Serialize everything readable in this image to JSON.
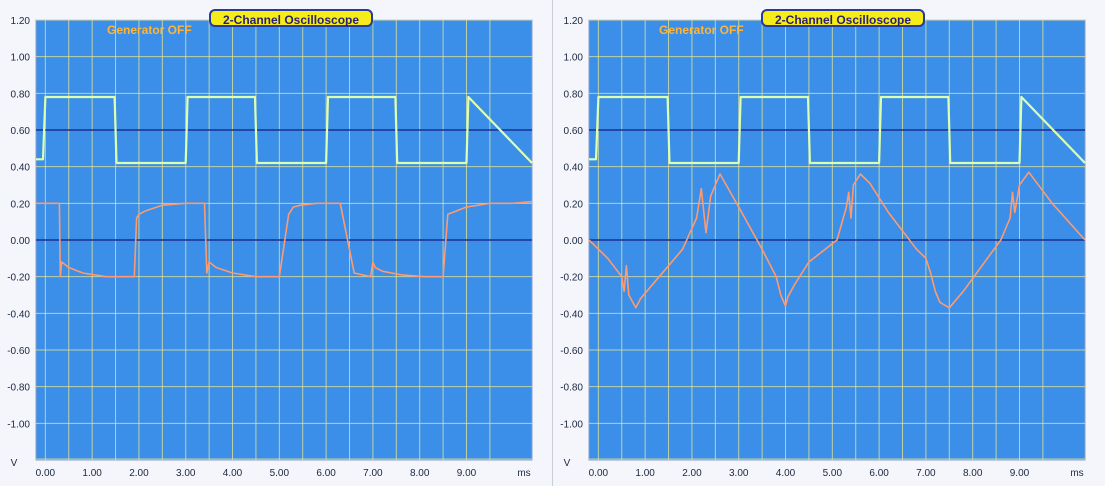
{
  "panels": [
    {
      "title": "2-Channel Oscilloscope",
      "generator_status": "Generator OFF"
    },
    {
      "title": "2-Channel Oscilloscope",
      "generator_status": "Generator OFF"
    }
  ],
  "axes": {
    "y_ticks": [
      "1.20",
      "1.00",
      "0.80",
      "0.60",
      "0.40",
      "0.20",
      "0.00",
      "-0.20",
      "-0.40",
      "-0.60",
      "-0.80",
      "-1.00"
    ],
    "x_ticks": [
      "0.00",
      "1.00",
      "2.00",
      "3.00",
      "4.00",
      "5.00",
      "6.00",
      "7.00",
      "8.00",
      "9.00"
    ],
    "y_unit": "V",
    "x_unit": "ms"
  },
  "colors": {
    "plot_bg": "#3b8fe8",
    "grid": "#e9e690",
    "baseline": "#1c2f8f",
    "ch1": "#dcffb0",
    "ch2": "#ff9a6e"
  },
  "chart_data": [
    {
      "type": "line",
      "xlim": [
        -0.2,
        10.4
      ],
      "ylim": [
        -1.2,
        1.2
      ],
      "grid": true,
      "series": [
        {
          "x": [
            -0.2,
            -0.05,
            0.0,
            1.48,
            1.52,
            3.0,
            3.04,
            4.48,
            4.52,
            6.0,
            6.04,
            7.48,
            7.52,
            9.0,
            9.04,
            10.4
          ],
          "y": [
            0.44,
            0.44,
            0.78,
            0.78,
            0.42,
            0.42,
            0.78,
            0.78,
            0.42,
            0.42,
            0.78,
            0.78,
            0.42,
            0.42,
            0.78,
            0.42
          ]
        },
        {
          "x": [
            -0.2,
            0.3,
            0.32,
            0.35,
            0.5,
            0.8,
            1.3,
            1.9,
            1.95,
            2.0,
            2.15,
            2.5,
            3.0,
            3.4,
            3.45,
            3.5,
            3.65,
            4.0,
            4.5,
            5.0,
            5.2,
            5.25,
            5.3,
            5.45,
            5.8,
            6.3,
            6.6,
            6.95,
            7.0,
            7.05,
            7.2,
            7.6,
            8.1,
            8.5,
            8.6,
            8.7,
            9.0,
            9.5,
            10.0,
            10.4
          ],
          "y": [
            0.2,
            0.2,
            -0.2,
            -0.12,
            -0.15,
            -0.18,
            -0.2,
            -0.2,
            0.12,
            0.14,
            0.16,
            0.19,
            0.2,
            0.2,
            -0.18,
            -0.12,
            -0.15,
            -0.18,
            -0.2,
            -0.2,
            0.14,
            0.16,
            0.18,
            0.19,
            0.2,
            0.2,
            -0.18,
            -0.2,
            -0.12,
            -0.15,
            -0.17,
            -0.19,
            -0.2,
            -0.2,
            0.14,
            0.15,
            0.18,
            0.2,
            0.2,
            0.21
          ]
        }
      ]
    },
    {
      "type": "line",
      "xlim": [
        -0.2,
        10.4
      ],
      "ylim": [
        -1.2,
        1.2
      ],
      "grid": true,
      "series": [
        {
          "x": [
            -0.2,
            -0.05,
            0.0,
            1.48,
            1.52,
            3.0,
            3.04,
            4.48,
            4.52,
            6.0,
            6.04,
            7.48,
            7.52,
            9.0,
            9.04,
            10.4
          ],
          "y": [
            0.44,
            0.44,
            0.78,
            0.78,
            0.42,
            0.42,
            0.78,
            0.78,
            0.42,
            0.42,
            0.78,
            0.78,
            0.42,
            0.42,
            0.78,
            0.42
          ]
        },
        {
          "x": [
            -0.2,
            0.2,
            0.5,
            0.55,
            0.6,
            0.65,
            0.8,
            0.9,
            1.3,
            1.8,
            2.1,
            2.2,
            2.3,
            2.4,
            2.6,
            3.0,
            3.5,
            3.8,
            3.9,
            4.0,
            4.05,
            4.2,
            4.5,
            5.1,
            5.3,
            5.35,
            5.4,
            5.45,
            5.6,
            5.8,
            6.2,
            6.8,
            7.0,
            7.1,
            7.2,
            7.3,
            7.5,
            7.8,
            8.6,
            8.8,
            8.85,
            8.9,
            9.0,
            9.2,
            9.7,
            10.4
          ],
          "y": [
            0.0,
            -0.1,
            -0.2,
            -0.28,
            -0.14,
            -0.3,
            -0.37,
            -0.32,
            -0.2,
            -0.05,
            0.12,
            0.28,
            0.04,
            0.24,
            0.36,
            0.18,
            -0.05,
            -0.2,
            -0.3,
            -0.36,
            -0.31,
            -0.24,
            -0.12,
            0.0,
            0.18,
            0.26,
            0.12,
            0.3,
            0.36,
            0.31,
            0.15,
            -0.05,
            -0.1,
            -0.18,
            -0.28,
            -0.34,
            -0.37,
            -0.28,
            0.0,
            0.12,
            0.26,
            0.15,
            0.3,
            0.37,
            0.2,
            0.0
          ]
        }
      ]
    }
  ]
}
